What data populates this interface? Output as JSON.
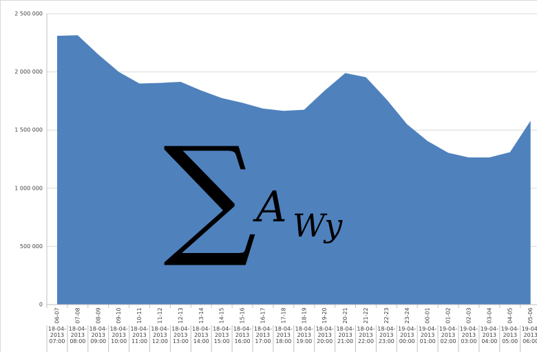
{
  "chart_data": {
    "type": "area",
    "color": "#4f81bd",
    "grid": true,
    "categories": [
      "06-07",
      "07-08",
      "08-09",
      "09-10",
      "10-11",
      "11-12",
      "12-13",
      "13-14",
      "14-15",
      "15-16",
      "16-17",
      "17-18",
      "18-19",
      "19-20",
      "20-21",
      "21-22",
      "22-23",
      "23-24",
      "00-01",
      "01-02",
      "02-03",
      "03-04",
      "04-05",
      "05-06"
    ],
    "x_sublabels": [
      "18-04-2013 07:00",
      "18-04-2013 08:00",
      "18-04-2013 09:00",
      "18-04-2013 10:00",
      "18-04-2013 11:00",
      "18-04-2013 12:00",
      "18-04-2013 13:00",
      "18-04-2013 14:00",
      "18-04-2013 15:00",
      "18-04-2013 16:00",
      "18-04-2013 17:00",
      "18-04-2013 18:00",
      "18-04-2013 19:00",
      "18-04-2013 20:00",
      "18-04-2013 21:00",
      "18-04-2013 22:00",
      "18-04-2013 23:00",
      "19-04-2013 00:00",
      "19-04-2013 01:00",
      "19-04-2013 02:00",
      "19-04-2013 03:00",
      "19-04-2013 04:00",
      "19-04-2013 05:00",
      "19-04-2013 06:00"
    ],
    "values": [
      2310000,
      2315000,
      2150000,
      2000000,
      1900000,
      1905000,
      1915000,
      1840000,
      1775000,
      1735000,
      1685000,
      1665000,
      1675000,
      1840000,
      1990000,
      1955000,
      1765000,
      1550000,
      1405000,
      1305000,
      1265000,
      1265000,
      1310000,
      1580000
    ],
    "ylim": [
      0,
      2500000
    ],
    "yticks": [
      0,
      {
        "value": 500000,
        "label": "500 000"
      },
      {
        "value": 1000000,
        "label": "1 000 000"
      },
      {
        "value": 1500000,
        "label": "1 500 000"
      },
      {
        "value": 2000000,
        "label": "2 000 000"
      },
      {
        "value": 2500000,
        "label": "2 500 000"
      }
    ],
    "annotation": {
      "symbol": "∑",
      "base": "A",
      "subscript": "Wy"
    }
  }
}
